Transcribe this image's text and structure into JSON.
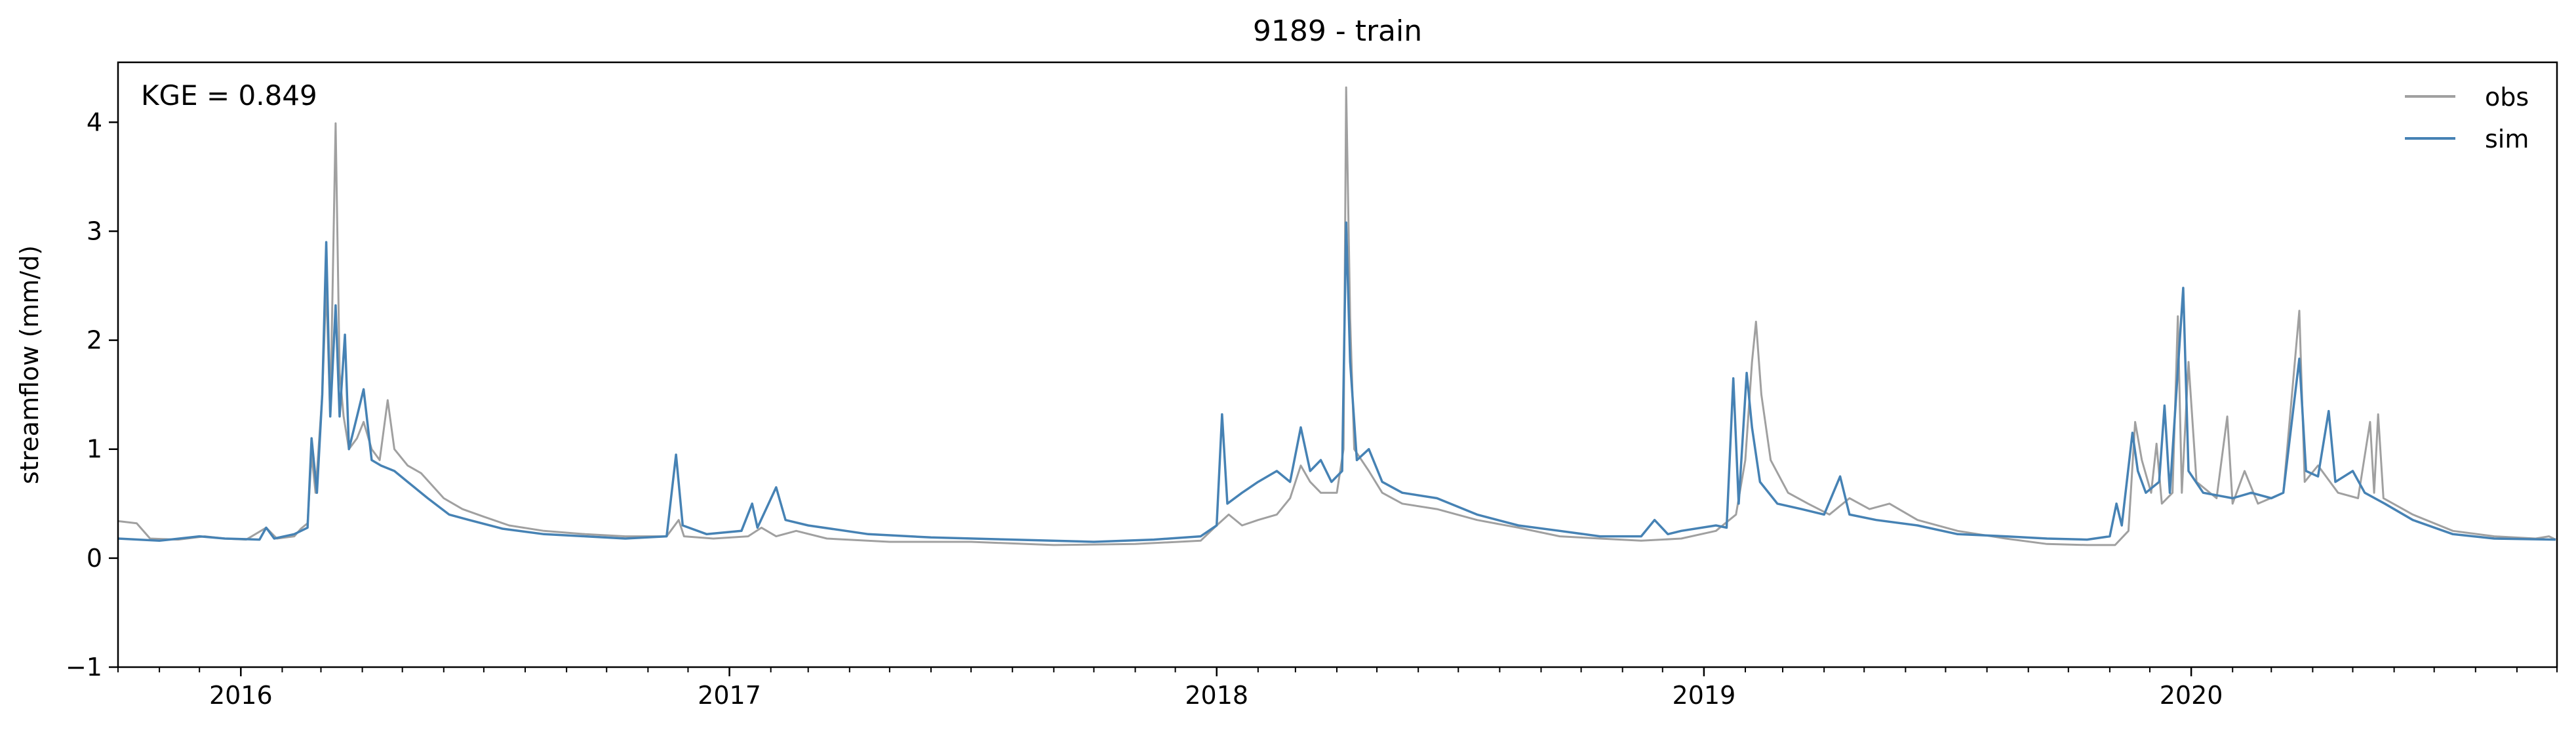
{
  "chart_data": {
    "type": "line",
    "title": "9189 - train",
    "ylabel": "streamflow (mm/d)",
    "xlabel": "",
    "annotation": "KGE = 0.849",
    "xlim": [
      "2015-10-01",
      "2020-09-30"
    ],
    "ylim": [
      -1,
      4.55
    ],
    "yticks": [
      -1,
      0,
      1,
      2,
      3,
      4
    ],
    "xticks": [
      {
        "date": "2016-01-01",
        "label": "2016"
      },
      {
        "date": "2017-01-01",
        "label": "2017"
      },
      {
        "date": "2018-01-01",
        "label": "2018"
      },
      {
        "date": "2019-01-01",
        "label": "2019"
      },
      {
        "date": "2020-01-01",
        "label": "2020"
      }
    ],
    "minor_ticks": "monthly",
    "grid": false,
    "legend_position": "top-right",
    "series": [
      {
        "name": "obs",
        "color": "#a0a0a0",
        "points": [
          [
            "2015-10-01",
            0.34
          ],
          [
            "2015-10-15",
            0.32
          ],
          [
            "2015-10-25",
            0.18
          ],
          [
            "2015-11-15",
            0.17
          ],
          [
            "2015-12-05",
            0.2
          ],
          [
            "2015-12-20",
            0.18
          ],
          [
            "2016-01-05",
            0.17
          ],
          [
            "2016-01-20",
            0.28
          ],
          [
            "2016-01-28",
            0.18
          ],
          [
            "2016-02-10",
            0.2
          ],
          [
            "2016-02-15",
            0.27
          ],
          [
            "2016-02-20",
            0.32
          ],
          [
            "2016-02-23",
            0.95
          ],
          [
            "2016-02-26",
            0.6
          ],
          [
            "2016-03-02",
            1.5
          ],
          [
            "2016-03-05",
            2.5
          ],
          [
            "2016-03-08",
            1.3
          ],
          [
            "2016-03-12",
            3.99
          ],
          [
            "2016-03-15",
            1.7
          ],
          [
            "2016-03-18",
            1.3
          ],
          [
            "2016-03-22",
            1.0
          ],
          [
            "2016-03-28",
            1.1
          ],
          [
            "2016-04-02",
            1.25
          ],
          [
            "2016-04-08",
            1.0
          ],
          [
            "2016-04-14",
            0.9
          ],
          [
            "2016-04-20",
            1.45
          ],
          [
            "2016-04-25",
            1.0
          ],
          [
            "2016-05-05",
            0.85
          ],
          [
            "2016-05-15",
            0.78
          ],
          [
            "2016-06-01",
            0.55
          ],
          [
            "2016-06-15",
            0.45
          ],
          [
            "2016-07-01",
            0.38
          ],
          [
            "2016-07-20",
            0.3
          ],
          [
            "2016-08-15",
            0.25
          ],
          [
            "2016-09-15",
            0.22
          ],
          [
            "2016-10-15",
            0.2
          ],
          [
            "2016-11-15",
            0.2
          ],
          [
            "2016-11-24",
            0.35
          ],
          [
            "2016-11-28",
            0.2
          ],
          [
            "2016-12-20",
            0.18
          ],
          [
            "2017-01-15",
            0.2
          ],
          [
            "2017-01-25",
            0.28
          ],
          [
            "2017-02-05",
            0.2
          ],
          [
            "2017-02-20",
            0.25
          ],
          [
            "2017-03-15",
            0.18
          ],
          [
            "2017-05-01",
            0.15
          ],
          [
            "2017-07-01",
            0.15
          ],
          [
            "2017-09-01",
            0.12
          ],
          [
            "2017-11-01",
            0.13
          ],
          [
            "2017-12-20",
            0.16
          ],
          [
            "2018-01-01",
            0.3
          ],
          [
            "2018-01-10",
            0.4
          ],
          [
            "2018-01-20",
            0.3
          ],
          [
            "2018-02-01",
            0.35
          ],
          [
            "2018-02-15",
            0.4
          ],
          [
            "2018-02-25",
            0.55
          ],
          [
            "2018-03-05",
            0.85
          ],
          [
            "2018-03-12",
            0.7
          ],
          [
            "2018-03-20",
            0.6
          ],
          [
            "2018-04-01",
            0.6
          ],
          [
            "2018-04-06",
            1.0
          ],
          [
            "2018-04-08",
            4.32
          ],
          [
            "2018-04-11",
            2.2
          ],
          [
            "2018-04-14",
            1.0
          ],
          [
            "2018-04-25",
            0.8
          ],
          [
            "2018-05-05",
            0.6
          ],
          [
            "2018-05-20",
            0.5
          ],
          [
            "2018-06-15",
            0.45
          ],
          [
            "2018-07-15",
            0.35
          ],
          [
            "2018-08-15",
            0.28
          ],
          [
            "2018-09-15",
            0.2
          ],
          [
            "2018-10-15",
            0.18
          ],
          [
            "2018-11-15",
            0.16
          ],
          [
            "2018-12-15",
            0.18
          ],
          [
            "2019-01-10",
            0.25
          ],
          [
            "2019-01-25",
            0.4
          ],
          [
            "2019-02-01",
            0.9
          ],
          [
            "2019-02-06",
            1.8
          ],
          [
            "2019-02-09",
            2.17
          ],
          [
            "2019-02-13",
            1.5
          ],
          [
            "2019-02-20",
            0.9
          ],
          [
            "2019-03-05",
            0.6
          ],
          [
            "2019-03-20",
            0.5
          ],
          [
            "2019-04-05",
            0.4
          ],
          [
            "2019-04-20",
            0.55
          ],
          [
            "2019-05-05",
            0.45
          ],
          [
            "2019-05-20",
            0.5
          ],
          [
            "2019-06-10",
            0.35
          ],
          [
            "2019-07-10",
            0.25
          ],
          [
            "2019-08-15",
            0.18
          ],
          [
            "2019-09-15",
            0.13
          ],
          [
            "2019-10-15",
            0.12
          ],
          [
            "2019-11-05",
            0.12
          ],
          [
            "2019-11-15",
            0.25
          ],
          [
            "2019-11-20",
            1.25
          ],
          [
            "2019-11-25",
            0.9
          ],
          [
            "2019-12-02",
            0.6
          ],
          [
            "2019-12-06",
            1.05
          ],
          [
            "2019-12-10",
            0.5
          ],
          [
            "2019-12-18",
            0.6
          ],
          [
            "2019-12-22",
            2.22
          ],
          [
            "2019-12-25",
            0.6
          ],
          [
            "2019-12-30",
            1.8
          ],
          [
            "2020-01-05",
            0.7
          ],
          [
            "2020-01-20",
            0.55
          ],
          [
            "2020-01-28",
            1.3
          ],
          [
            "2020-02-01",
            0.5
          ],
          [
            "2020-02-10",
            0.8
          ],
          [
            "2020-02-20",
            0.5
          ],
          [
            "2020-03-10",
            0.6
          ],
          [
            "2020-03-22",
            2.27
          ],
          [
            "2020-03-26",
            0.7
          ],
          [
            "2020-04-05",
            0.85
          ],
          [
            "2020-04-20",
            0.6
          ],
          [
            "2020-05-05",
            0.55
          ],
          [
            "2020-05-14",
            1.25
          ],
          [
            "2020-05-17",
            0.6
          ],
          [
            "2020-05-20",
            1.32
          ],
          [
            "2020-05-24",
            0.55
          ],
          [
            "2020-06-15",
            0.4
          ],
          [
            "2020-07-15",
            0.25
          ],
          [
            "2020-08-15",
            0.2
          ],
          [
            "2020-09-15",
            0.18
          ],
          [
            "2020-09-25",
            0.2
          ],
          [
            "2020-09-30",
            0.17
          ]
        ]
      },
      {
        "name": "sim",
        "color": "#4682b4",
        "points": [
          [
            "2015-10-01",
            0.18
          ],
          [
            "2015-11-01",
            0.16
          ],
          [
            "2015-12-01",
            0.2
          ],
          [
            "2015-12-20",
            0.18
          ],
          [
            "2016-01-15",
            0.17
          ],
          [
            "2016-01-20",
            0.28
          ],
          [
            "2016-01-26",
            0.18
          ],
          [
            "2016-02-10",
            0.22
          ],
          [
            "2016-02-20",
            0.28
          ],
          [
            "2016-02-23",
            1.1
          ],
          [
            "2016-02-27",
            0.6
          ],
          [
            "2016-03-02",
            1.5
          ],
          [
            "2016-03-05",
            2.9
          ],
          [
            "2016-03-08",
            1.3
          ],
          [
            "2016-03-12",
            2.32
          ],
          [
            "2016-03-15",
            1.3
          ],
          [
            "2016-03-19",
            2.05
          ],
          [
            "2016-03-22",
            1.0
          ],
          [
            "2016-03-28",
            1.3
          ],
          [
            "2016-04-02",
            1.55
          ],
          [
            "2016-04-08",
            0.9
          ],
          [
            "2016-04-15",
            0.85
          ],
          [
            "2016-04-25",
            0.8
          ],
          [
            "2016-05-05",
            0.7
          ],
          [
            "2016-05-20",
            0.55
          ],
          [
            "2016-06-05",
            0.4
          ],
          [
            "2016-06-20",
            0.35
          ],
          [
            "2016-07-15",
            0.27
          ],
          [
            "2016-08-15",
            0.22
          ],
          [
            "2016-09-15",
            0.2
          ],
          [
            "2016-10-15",
            0.18
          ],
          [
            "2016-11-15",
            0.2
          ],
          [
            "2016-11-22",
            0.95
          ],
          [
            "2016-11-27",
            0.3
          ],
          [
            "2016-12-15",
            0.22
          ],
          [
            "2017-01-10",
            0.25
          ],
          [
            "2017-01-18",
            0.5
          ],
          [
            "2017-01-22",
            0.28
          ],
          [
            "2017-02-05",
            0.65
          ],
          [
            "2017-02-12",
            0.35
          ],
          [
            "2017-03-01",
            0.3
          ],
          [
            "2017-04-15",
            0.22
          ],
          [
            "2017-06-01",
            0.19
          ],
          [
            "2017-08-01",
            0.17
          ],
          [
            "2017-10-01",
            0.15
          ],
          [
            "2017-11-15",
            0.17
          ],
          [
            "2017-12-20",
            0.2
          ],
          [
            "2018-01-01",
            0.3
          ],
          [
            "2018-01-05",
            1.32
          ],
          [
            "2018-01-09",
            0.5
          ],
          [
            "2018-01-20",
            0.6
          ],
          [
            "2018-02-01",
            0.7
          ],
          [
            "2018-02-15",
            0.8
          ],
          [
            "2018-02-25",
            0.7
          ],
          [
            "2018-03-05",
            1.2
          ],
          [
            "2018-03-12",
            0.8
          ],
          [
            "2018-03-20",
            0.9
          ],
          [
            "2018-03-28",
            0.7
          ],
          [
            "2018-04-05",
            0.8
          ],
          [
            "2018-04-08",
            3.08
          ],
          [
            "2018-04-11",
            1.8
          ],
          [
            "2018-04-16",
            0.9
          ],
          [
            "2018-04-25",
            1.0
          ],
          [
            "2018-05-05",
            0.7
          ],
          [
            "2018-05-20",
            0.6
          ],
          [
            "2018-06-15",
            0.55
          ],
          [
            "2018-07-15",
            0.4
          ],
          [
            "2018-08-15",
            0.3
          ],
          [
            "2018-09-15",
            0.25
          ],
          [
            "2018-10-15",
            0.2
          ],
          [
            "2018-11-15",
            0.2
          ],
          [
            "2018-11-25",
            0.35
          ],
          [
            "2018-12-05",
            0.22
          ],
          [
            "2018-12-15",
            0.25
          ],
          [
            "2019-01-10",
            0.3
          ],
          [
            "2019-01-18",
            0.28
          ],
          [
            "2019-01-23",
            1.65
          ],
          [
            "2019-01-27",
            0.5
          ],
          [
            "2019-02-02",
            1.7
          ],
          [
            "2019-02-06",
            1.2
          ],
          [
            "2019-02-12",
            0.7
          ],
          [
            "2019-02-25",
            0.5
          ],
          [
            "2019-03-15",
            0.45
          ],
          [
            "2019-04-01",
            0.4
          ],
          [
            "2019-04-13",
            0.75
          ],
          [
            "2019-04-20",
            0.4
          ],
          [
            "2019-05-10",
            0.35
          ],
          [
            "2019-06-10",
            0.3
          ],
          [
            "2019-07-10",
            0.22
          ],
          [
            "2019-08-15",
            0.2
          ],
          [
            "2019-09-15",
            0.18
          ],
          [
            "2019-10-15",
            0.17
          ],
          [
            "2019-11-01",
            0.2
          ],
          [
            "2019-11-06",
            0.5
          ],
          [
            "2019-11-10",
            0.3
          ],
          [
            "2019-11-18",
            1.15
          ],
          [
            "2019-11-22",
            0.8
          ],
          [
            "2019-11-28",
            0.6
          ],
          [
            "2019-12-08",
            0.7
          ],
          [
            "2019-12-12",
            1.4
          ],
          [
            "2019-12-16",
            0.6
          ],
          [
            "2019-12-26",
            2.48
          ],
          [
            "2019-12-30",
            0.8
          ],
          [
            "2020-01-10",
            0.6
          ],
          [
            "2020-02-01",
            0.55
          ],
          [
            "2020-02-15",
            0.6
          ],
          [
            "2020-03-01",
            0.55
          ],
          [
            "2020-03-10",
            0.6
          ],
          [
            "2020-03-22",
            1.83
          ],
          [
            "2020-03-27",
            0.8
          ],
          [
            "2020-04-05",
            0.75
          ],
          [
            "2020-04-13",
            1.35
          ],
          [
            "2020-04-18",
            0.7
          ],
          [
            "2020-05-01",
            0.8
          ],
          [
            "2020-05-10",
            0.6
          ],
          [
            "2020-05-25",
            0.5
          ],
          [
            "2020-06-15",
            0.35
          ],
          [
            "2020-07-15",
            0.22
          ],
          [
            "2020-08-15",
            0.18
          ],
          [
            "2020-09-30",
            0.17
          ]
        ]
      }
    ]
  }
}
